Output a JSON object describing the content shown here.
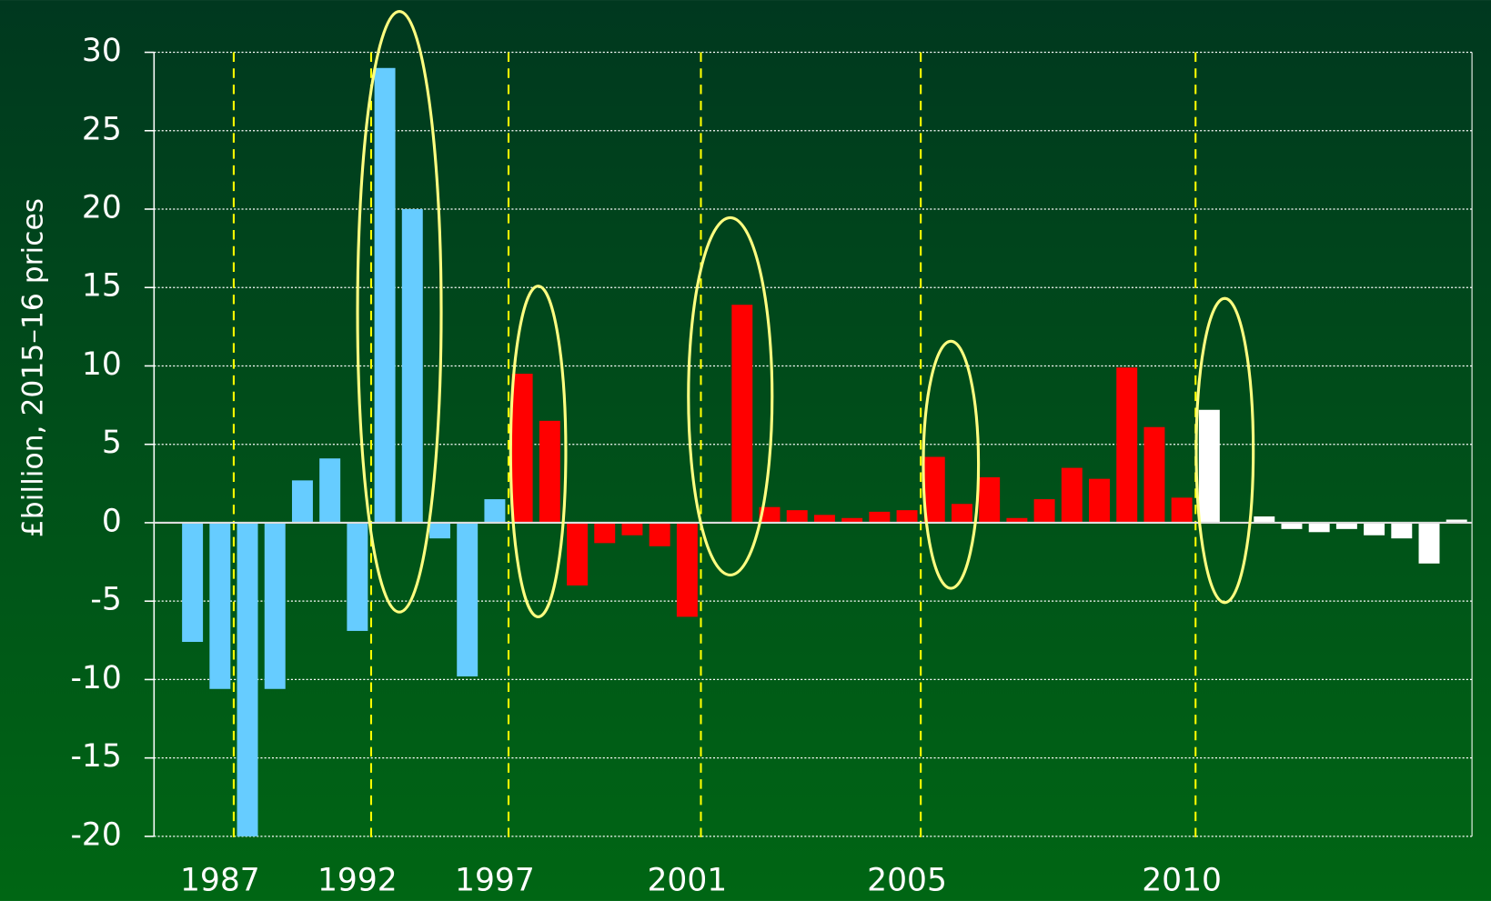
{
  "chart_data": {
    "type": "bar",
    "y_label": "£billion, 2015–16 prices",
    "categories": [
      null,
      "1987",
      null,
      null,
      null,
      null,
      "1992",
      null,
      null,
      null,
      null,
      "1997",
      null,
      null,
      null,
      null,
      null,
      null,
      "2001",
      null,
      null,
      null,
      null,
      null,
      null,
      null,
      "2005",
      null,
      null,
      null,
      null,
      null,
      null,
      null,
      null,
      null,
      "2010",
      null,
      null,
      null,
      null,
      null,
      null,
      null,
      null,
      null,
      null
    ],
    "values": [
      -7.6,
      -10.6,
      -20,
      -10.6,
      2.7,
      4.1,
      -6.9,
      29,
      20,
      -1,
      -9.8,
      1.5,
      9.5,
      6.5,
      -4,
      -1.3,
      -0.8,
      -1.5,
      -6,
      0,
      13.9,
      1,
      0.8,
      0.5,
      0.3,
      0.7,
      0.8,
      4.2,
      1.2,
      2.9,
      0.3,
      1.5,
      3.5,
      2.8,
      9.9,
      6.1,
      1.6,
      7.2,
      0,
      0.4,
      -0.4,
      -0.6,
      -0.4,
      -0.8,
      -1,
      -2.6,
      0.2
    ],
    "colors": [
      "#66ccff",
      "#66ccff",
      "#66ccff",
      "#66ccff",
      "#66ccff",
      "#66ccff",
      "#66ccff",
      "#66ccff",
      "#66ccff",
      "#66ccff",
      "#66ccff",
      "#66ccff",
      "#ff0000",
      "#ff0000",
      "#ff0000",
      "#ff0000",
      "#ff0000",
      "#ff0000",
      "#ff0000",
      "#ff0000",
      "#ff0000",
      "#ff0000",
      "#ff0000",
      "#ff0000",
      "#ff0000",
      "#ff0000",
      "#ff0000",
      "#ff0000",
      "#ff0000",
      "#ff0000",
      "#ff0000",
      "#ff0000",
      "#ff0000",
      "#ff0000",
      "#ff0000",
      "#ff0000",
      "#ff0000",
      "#ffffff",
      "#ffffff",
      "#ffffff",
      "#ffffff",
      "#ffffff",
      "#ffffff",
      "#ffffff",
      "#ffffff",
      "#ffffff",
      "#ffffff"
    ],
    "ylim": [
      -20,
      30
    ],
    "yticks": [
      -20,
      -15,
      -10,
      -5,
      0,
      5,
      10,
      15,
      20,
      25,
      30
    ],
    "grid": true
  }
}
